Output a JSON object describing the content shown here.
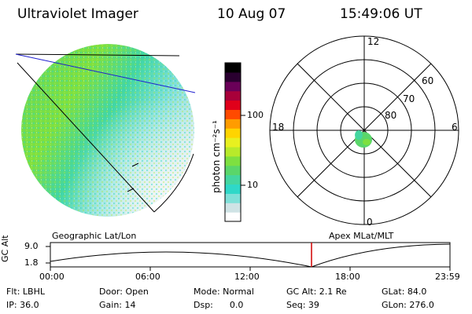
{
  "header": {
    "title": "Ultraviolet Imager",
    "date": "10 Aug 07",
    "time": "15:49:06 UT"
  },
  "colorbar": {
    "unit": "photon cm⁻²s⁻¹",
    "ticks": [
      "100",
      "10"
    ],
    "colors": [
      "#ffffff",
      "#cfe3e5",
      "#7fe0d8",
      "#2fd8c8",
      "#44d6a0",
      "#5ad66a",
      "#7ee040",
      "#b8ea2a",
      "#e8f020",
      "#ffd400",
      "#ff9c00",
      "#ff4a00",
      "#e0001a",
      "#a8003a",
      "#6a0058",
      "#2a0030",
      "#000000"
    ]
  },
  "polar": {
    "hour_labels": [
      "12",
      "18",
      "6",
      "0"
    ],
    "lat_labels": [
      "60",
      "70",
      "80"
    ]
  },
  "plot": {
    "left_label": "Geographic Lat/Lon",
    "right_label": "Apex MLat/MLT",
    "ylabel": "GC Alt",
    "y_ticks": [
      "9.0",
      "1.8"
    ],
    "x_ticks": [
      "00:00",
      "06:00",
      "12:00",
      "18:00",
      "23:59"
    ],
    "marker_color": "#d00000"
  },
  "info": {
    "filter": "Flt: LBHL",
    "door": "Door: Open",
    "mode": "Mode: Normal",
    "gc_alt": "GC Alt: 2.1 Re",
    "glat": "GLat:  84.0",
    "ip": "IP: 36.0",
    "gain": "Gain: 14",
    "dsp": "Dsp:      0.0",
    "seq": "Seq: 39",
    "glon": "GLon: 276.0"
  }
}
